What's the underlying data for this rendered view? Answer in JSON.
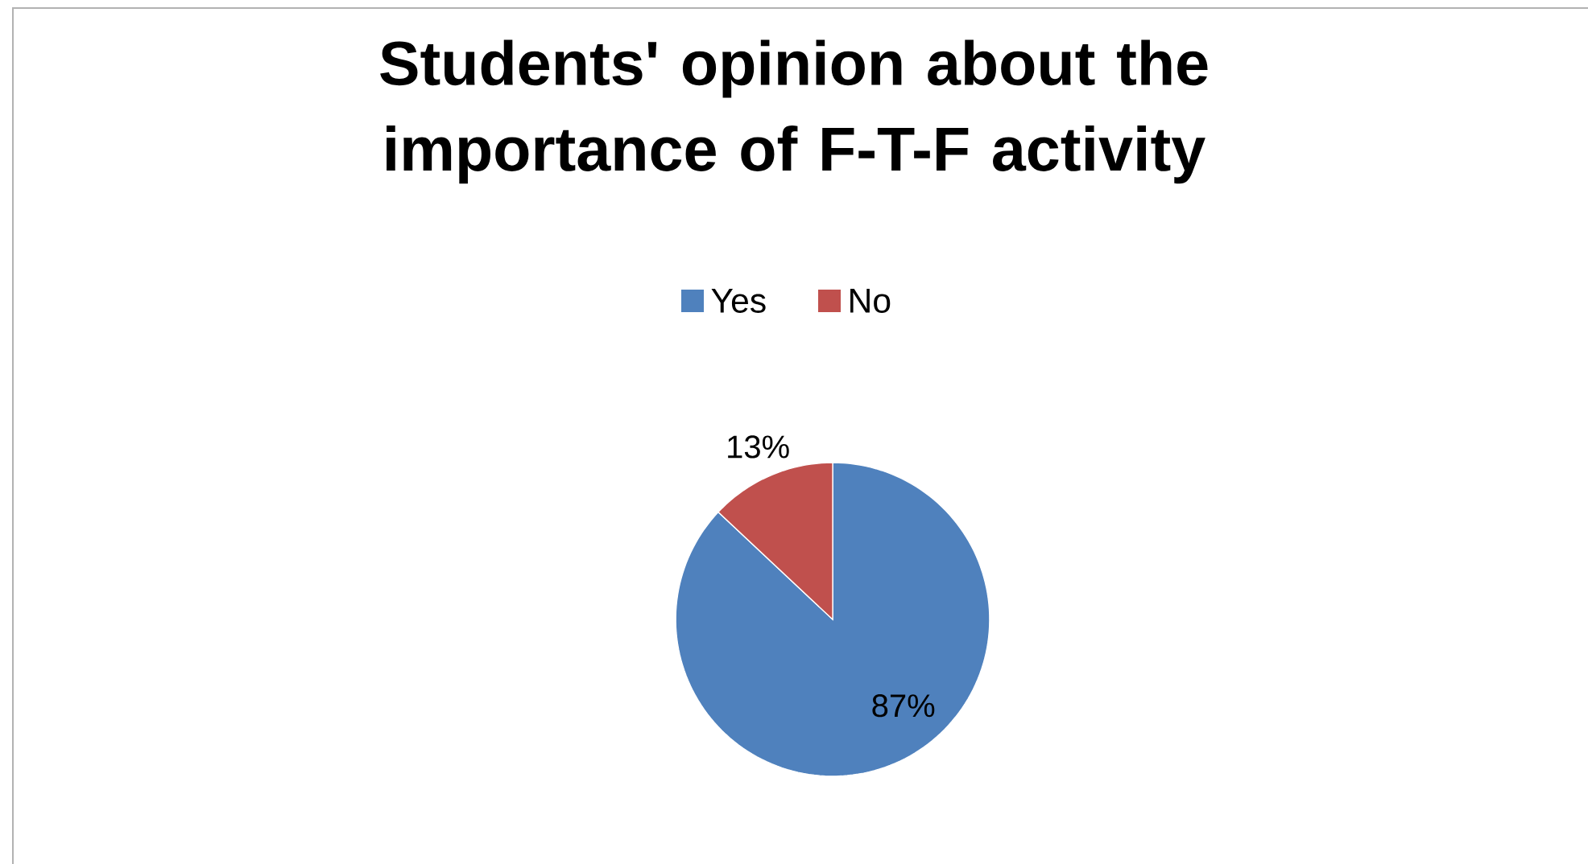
{
  "chart_data": {
    "type": "pie",
    "title": "Students' opinion about the importance of F-T-F activity",
    "categories": [
      "Yes",
      "No"
    ],
    "values": [
      87,
      13
    ],
    "colors": [
      "#4f81bd",
      "#c0504d"
    ],
    "value_labels": [
      "87%",
      "13%"
    ],
    "legend": "top"
  }
}
